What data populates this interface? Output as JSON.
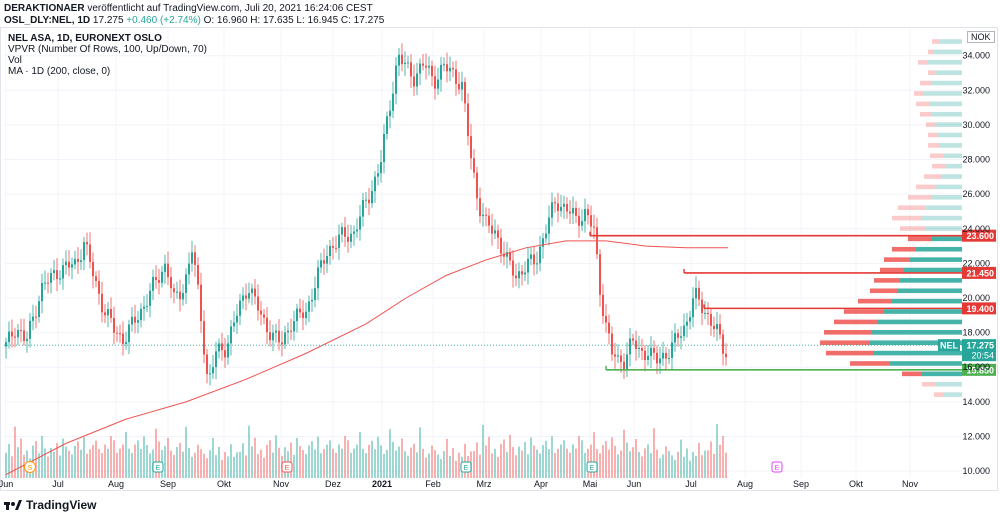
{
  "header": {
    "author": "DERAKTIONAER",
    "published": "veröffentlicht auf TradingView.com, Juli 20, 2021 16:24:06 CEST",
    "symbol": "OSL_DLY:NEL, 1D",
    "last": "17.275",
    "change": "+0.460 (+2.74%)",
    "ohlc": "O: 16.960 H: 17.635 L: 16.945 C: 17.275"
  },
  "legend": {
    "title": "NEL ASA, 1D, EURONEXT OSLO",
    "vpvr": "VPVR (Number Of Rows, 100, Up/Down, 70)",
    "vol": "Vol",
    "ma": "MA · 1D (200, close, 0)"
  },
  "currency": "NOK",
  "footer": {
    "brand": "TradingView"
  },
  "colors": {
    "up": "#26a69a",
    "down": "#ef5350",
    "ma": "#ef5350",
    "support": "#4caf50",
    "resistance": "#e53935",
    "current": "#26a69a"
  },
  "chart_data": {
    "type": "candlestick",
    "ylim": [
      9.6,
      35.6
    ],
    "y_ticks": [
      10,
      12,
      14,
      16,
      18,
      20,
      22,
      24,
      26,
      28,
      30,
      32,
      34
    ],
    "y_tick_labels": [
      "10.000",
      "12.000",
      "14.000",
      "16.000",
      "18.000",
      "20.000",
      "22.000",
      "24.000",
      "26.000",
      "28.000",
      "30.000",
      "32.000",
      "34.000"
    ],
    "x_labels": [
      "Jun",
      "Jul",
      "Aug",
      "Sep",
      "Okt",
      "Nov",
      "Dez",
      "2021",
      "Feb",
      "Mrz",
      "Apr",
      "Mai",
      "Jun",
      "Jul",
      "Aug",
      "Sep",
      "Okt",
      "Nov"
    ],
    "close_path": [
      [
        0,
        17.2
      ],
      [
        10,
        18.4
      ],
      [
        20,
        17.4
      ],
      [
        35,
        20.5
      ],
      [
        50,
        21.5
      ],
      [
        70,
        22.0
      ],
      [
        78,
        23.2
      ],
      [
        88,
        21.2
      ],
      [
        98,
        19.3
      ],
      [
        108,
        18.2
      ],
      [
        118,
        17.6
      ],
      [
        128,
        18.6
      ],
      [
        140,
        19.8
      ],
      [
        152,
        21.2
      ],
      [
        160,
        22.0
      ],
      [
        168,
        19.8
      ],
      [
        178,
        20.7
      ],
      [
        186,
        22.8
      ],
      [
        194,
        19.5
      ],
      [
        202,
        15.0
      ],
      [
        210,
        16.8
      ],
      [
        220,
        17.2
      ],
      [
        232,
        19.2
      ],
      [
        242,
        20.8
      ],
      [
        256,
        18.8
      ],
      [
        266,
        17.9
      ],
      [
        275,
        17.3
      ],
      [
        285,
        18.6
      ],
      [
        300,
        19.2
      ],
      [
        310,
        21.0
      ],
      [
        322,
        22.8
      ],
      [
        335,
        23.5
      ],
      [
        348,
        23.8
      ],
      [
        362,
        25.8
      ],
      [
        374,
        27.6
      ],
      [
        382,
        30.5
      ],
      [
        392,
        34.0
      ],
      [
        400,
        33.3
      ],
      [
        408,
        32.8
      ],
      [
        418,
        33.5
      ],
      [
        428,
        32.6
      ],
      [
        438,
        33.3
      ],
      [
        448,
        33.0
      ],
      [
        456,
        32.2
      ],
      [
        464,
        28.5
      ],
      [
        472,
        25.6
      ],
      [
        480,
        24.2
      ],
      [
        490,
        23.8
      ],
      [
        500,
        22.2
      ],
      [
        510,
        21.3
      ],
      [
        520,
        21.8
      ],
      [
        530,
        22.2
      ],
      [
        540,
        24.0
      ],
      [
        550,
        25.6
      ],
      [
        560,
        25.2
      ],
      [
        570,
        24.5
      ],
      [
        580,
        25.0
      ],
      [
        588,
        23.8
      ],
      [
        594,
        20.5
      ],
      [
        600,
        18.5
      ],
      [
        606,
        16.8
      ],
      [
        612,
        16.3
      ],
      [
        618,
        16.5
      ],
      [
        626,
        17.5
      ],
      [
        634,
        16.8
      ],
      [
        642,
        17.0
      ],
      [
        650,
        16.3
      ],
      [
        660,
        16.8
      ],
      [
        670,
        17.5
      ],
      [
        680,
        18.5
      ],
      [
        688,
        20.2
      ],
      [
        694,
        19.6
      ],
      [
        702,
        19.0
      ],
      [
        710,
        18.2
      ],
      [
        716,
        17.1
      ],
      [
        722,
        16.8
      ]
    ],
    "volume": [
      6,
      8,
      5,
      12,
      7,
      9,
      5,
      6,
      4,
      7,
      8,
      5,
      9,
      6,
      4,
      6,
      5,
      7,
      4,
      8,
      6,
      5,
      4,
      6,
      7,
      5,
      8,
      4,
      5,
      6,
      7,
      5,
      4,
      6,
      5,
      8,
      7,
      4,
      5,
      6,
      9,
      5,
      4,
      6,
      7,
      5,
      8,
      6,
      4,
      5,
      10,
      7,
      5,
      6,
      8,
      5,
      4,
      6,
      7,
      5,
      11,
      6,
      4,
      5,
      7,
      6,
      5,
      4,
      6,
      9,
      5,
      7,
      4,
      6,
      5,
      8,
      5,
      6
    ],
    "ma200": [
      [
        0,
        9.8
      ],
      [
        60,
        11.6
      ],
      [
        120,
        13.0
      ],
      [
        180,
        14.0
      ],
      [
        240,
        15.3
      ],
      [
        300,
        16.8
      ],
      [
        360,
        18.5
      ],
      [
        400,
        20.0
      ],
      [
        440,
        21.3
      ],
      [
        480,
        22.2
      ],
      [
        520,
        22.9
      ],
      [
        560,
        23.3
      ],
      [
        600,
        23.3
      ],
      [
        640,
        23.0
      ],
      [
        680,
        22.9
      ],
      [
        722,
        22.9
      ]
    ],
    "levels": [
      {
        "price": 23.6,
        "label": "23.600",
        "kind": "resistance"
      },
      {
        "price": 21.45,
        "label": "21.450",
        "kind": "resistance"
      },
      {
        "price": 19.4,
        "label": "19.400",
        "kind": "resistance"
      },
      {
        "price": 15.85,
        "label": "15.850",
        "kind": "support"
      }
    ],
    "current": {
      "price": 17.275,
      "ticker": "NEL",
      "label": "17.275",
      "countdown": "20:54"
    },
    "vpvr": [
      [
        34.8,
        22,
        8
      ],
      [
        34.2,
        28,
        6
      ],
      [
        33.6,
        34,
        10
      ],
      [
        33.0,
        26,
        8
      ],
      [
        32.4,
        30,
        12
      ],
      [
        31.8,
        38,
        10
      ],
      [
        31.2,
        32,
        14
      ],
      [
        30.6,
        30,
        12
      ],
      [
        30.0,
        26,
        10
      ],
      [
        29.4,
        24,
        10
      ],
      [
        28.8,
        22,
        12
      ],
      [
        28.2,
        18,
        14
      ],
      [
        27.6,
        16,
        14
      ],
      [
        27.0,
        20,
        18
      ],
      [
        26.4,
        26,
        20
      ],
      [
        25.8,
        30,
        24
      ],
      [
        25.2,
        36,
        28
      ],
      [
        24.6,
        40,
        30
      ],
      [
        24.0,
        36,
        26
      ],
      [
        23.4,
        30,
        24
      ],
      [
        22.8,
        46,
        24
      ],
      [
        22.2,
        52,
        26
      ],
      [
        21.6,
        58,
        24
      ],
      [
        21.0,
        62,
        26
      ],
      [
        20.4,
        64,
        28
      ],
      [
        19.8,
        70,
        34
      ],
      [
        19.2,
        78,
        40
      ],
      [
        18.6,
        84,
        44
      ],
      [
        18.0,
        90,
        48
      ],
      [
        17.4,
        92,
        50
      ],
      [
        16.8,
        88,
        48
      ],
      [
        16.2,
        72,
        40
      ],
      [
        15.6,
        40,
        20
      ],
      [
        15.0,
        26,
        14
      ],
      [
        14.4,
        18,
        10
      ]
    ]
  }
}
